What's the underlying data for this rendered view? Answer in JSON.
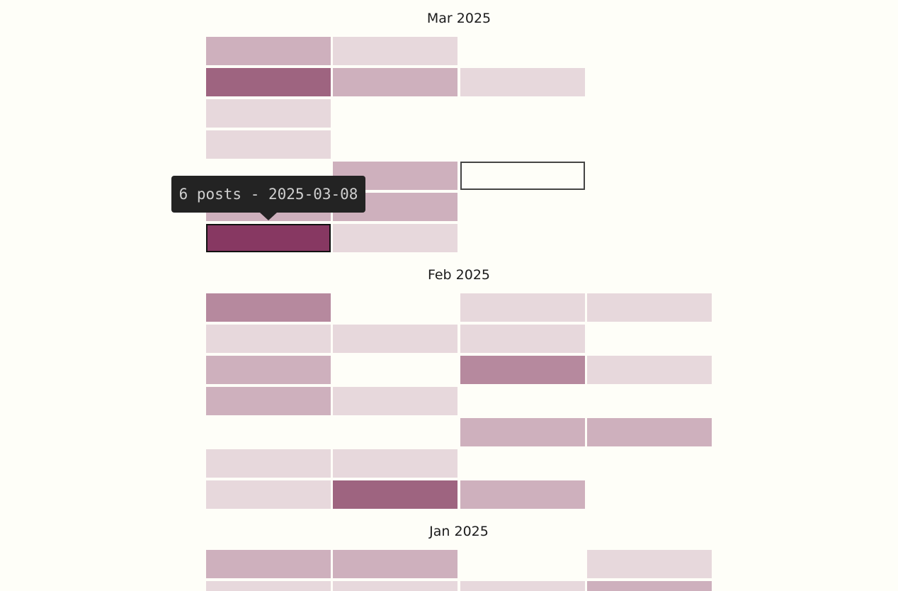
{
  "calendar": {
    "months": [
      {
        "label": "Mar 2025",
        "cells": [
          {
            "row": 0,
            "col": 0,
            "level": 2
          },
          {
            "row": 0,
            "col": 1,
            "level": 1
          },
          {
            "row": 1,
            "col": 0,
            "level": 4
          },
          {
            "row": 1,
            "col": 1,
            "level": 2
          },
          {
            "row": 1,
            "col": 2,
            "level": 1
          },
          {
            "row": 2,
            "col": 0,
            "level": 1
          },
          {
            "row": 3,
            "col": 0,
            "level": 1
          },
          {
            "row": 4,
            "col": 1,
            "level": 2
          },
          {
            "row": 4,
            "col": 2,
            "level": 0,
            "outlined": true
          },
          {
            "row": 5,
            "col": 0,
            "level": 2
          },
          {
            "row": 5,
            "col": 1,
            "level": 2
          },
          {
            "row": 6,
            "col": 0,
            "level": 5,
            "selected": true,
            "count": 6,
            "date": "2025-03-08"
          },
          {
            "row": 6,
            "col": 1,
            "level": 1
          }
        ]
      },
      {
        "label": "Feb 2025",
        "cells": [
          {
            "row": 0,
            "col": 0,
            "level": 3
          },
          {
            "row": 0,
            "col": 2,
            "level": 1
          },
          {
            "row": 0,
            "col": 3,
            "level": 1
          },
          {
            "row": 1,
            "col": 0,
            "level": 1
          },
          {
            "row": 1,
            "col": 1,
            "level": 1
          },
          {
            "row": 1,
            "col": 2,
            "level": 1
          },
          {
            "row": 2,
            "col": 0,
            "level": 2
          },
          {
            "row": 2,
            "col": 2,
            "level": 3
          },
          {
            "row": 2,
            "col": 3,
            "level": 1
          },
          {
            "row": 3,
            "col": 0,
            "level": 2
          },
          {
            "row": 3,
            "col": 1,
            "level": 1
          },
          {
            "row": 4,
            "col": 2,
            "level": 2
          },
          {
            "row": 4,
            "col": 3,
            "level": 2
          },
          {
            "row": 5,
            "col": 0,
            "level": 1
          },
          {
            "row": 5,
            "col": 1,
            "level": 1
          },
          {
            "row": 6,
            "col": 0,
            "level": 1
          },
          {
            "row": 6,
            "col": 1,
            "level": 4
          },
          {
            "row": 6,
            "col": 2,
            "level": 2
          }
        ]
      },
      {
        "label": "Jan 2025",
        "cells": [
          {
            "row": 0,
            "col": 0,
            "level": 2
          },
          {
            "row": 0,
            "col": 1,
            "level": 2
          },
          {
            "row": 0,
            "col": 3,
            "level": 1
          },
          {
            "row": 1,
            "col": 0,
            "level": 1
          },
          {
            "row": 1,
            "col": 1,
            "level": 1
          },
          {
            "row": 1,
            "col": 2,
            "level": 1
          },
          {
            "row": 1,
            "col": 3,
            "level": 2
          }
        ]
      }
    ],
    "level_colors": [
      "#fefef8",
      "#e7d8dc",
      "#ceb0bd",
      "#b6899e",
      "#9e6480",
      "#873862"
    ]
  },
  "tooltip": {
    "text": "6 posts - 2025-03-08"
  }
}
